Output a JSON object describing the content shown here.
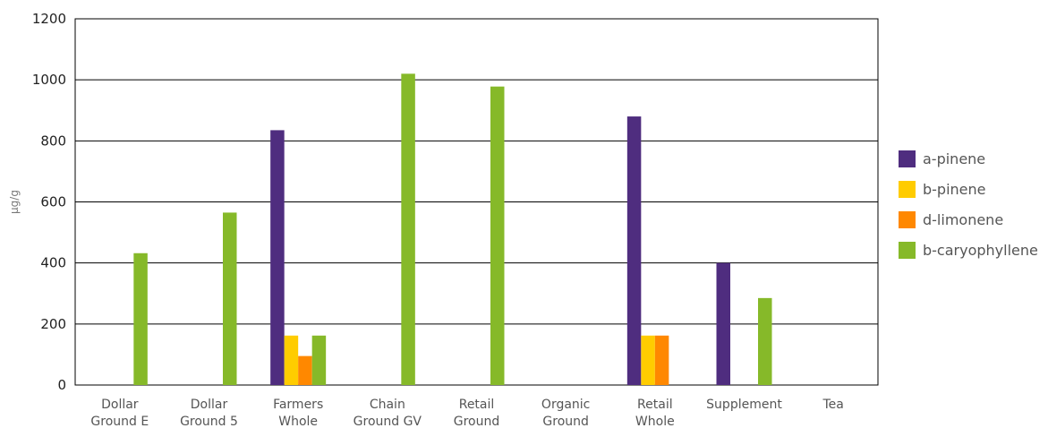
{
  "chart_data": {
    "type": "bar",
    "ylabel": "μg/g",
    "ylim": [
      0,
      1200
    ],
    "yticks": [
      0,
      200,
      400,
      600,
      800,
      1000,
      1200
    ],
    "grid": true,
    "legend_position": "right",
    "categories": [
      [
        "Dollar",
        "Ground E"
      ],
      [
        "Dollar",
        "Ground 5"
      ],
      [
        "Farmers",
        "Whole"
      ],
      [
        "Chain",
        "Ground GV"
      ],
      [
        "Retail",
        "Ground"
      ],
      [
        "Organic",
        "Ground"
      ],
      [
        "Retail",
        "Whole"
      ],
      [
        "Supplement"
      ],
      [
        "Tea"
      ]
    ],
    "series": [
      {
        "name": "a-pinene",
        "color": "#4f2d7f",
        "values": [
          0,
          0,
          835,
          0,
          0,
          0,
          880,
          400,
          0
        ]
      },
      {
        "name": "b-pinene",
        "color": "#ffcc00",
        "values": [
          0,
          0,
          162,
          0,
          0,
          0,
          162,
          0,
          0
        ]
      },
      {
        "name": "d-limonene",
        "color": "#ff8800",
        "values": [
          0,
          0,
          95,
          0,
          0,
          0,
          162,
          0,
          0
        ]
      },
      {
        "name": "b-caryophyllene",
        "color": "#86b929",
        "values": [
          432,
          565,
          162,
          1020,
          978,
          0,
          0,
          285,
          0
        ]
      }
    ]
  }
}
